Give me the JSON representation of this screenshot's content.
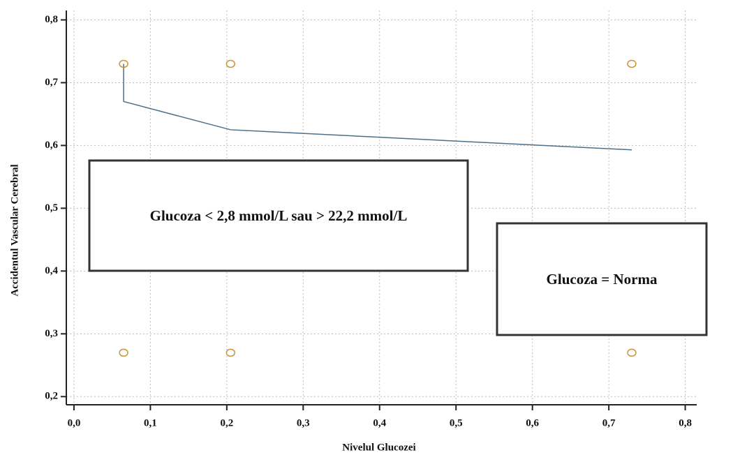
{
  "chart_data": {
    "type": "scatter",
    "x_label": "Nivelul Glucozei",
    "y_label": "Accidentul Vascular Cerebral",
    "annotations": [
      "Glucoza < 2,8 mmol/L sau > 22,2 mmol/L",
      "Glucoza = Norma"
    ],
    "points": {
      "x": [
        0.065,
        0.205,
        0.73,
        0.065,
        0.205,
        0.73
      ],
      "y": [
        0.73,
        0.73,
        0.73,
        0.27,
        0.27,
        0.27
      ],
      "color": "#c8963c"
    },
    "line": {
      "x": [
        0.065,
        0.065,
        0.205,
        0.73
      ],
      "y": [
        0.73,
        0.67,
        0.625,
        0.593
      ],
      "color": "#4a6f8a"
    },
    "xlim": [
      -0.01,
      0.815
    ],
    "ylim": [
      0.187,
      0.815
    ],
    "xticks": [
      {
        "value": 0.0,
        "label": "0,0"
      },
      {
        "value": 0.1,
        "label": "0,1"
      },
      {
        "value": 0.2,
        "label": "0,2"
      },
      {
        "value": 0.3,
        "label": "0,3"
      },
      {
        "value": 0.4,
        "label": "0,4"
      },
      {
        "value": 0.5,
        "label": "0,5"
      },
      {
        "value": 0.6,
        "label": "0,6"
      },
      {
        "value": 0.7,
        "label": "0,7"
      },
      {
        "value": 0.8,
        "label": "0,8"
      }
    ],
    "yticks": [
      {
        "value": 0.2,
        "label": "0,2"
      },
      {
        "value": 0.3,
        "label": "0,3"
      },
      {
        "value": 0.4,
        "label": "0,4"
      },
      {
        "value": 0.5,
        "label": "0,5"
      },
      {
        "value": 0.6,
        "label": "0,6"
      },
      {
        "value": 0.7,
        "label": "0,7"
      },
      {
        "value": 0.8,
        "label": "0,8"
      }
    ],
    "grid": true
  }
}
